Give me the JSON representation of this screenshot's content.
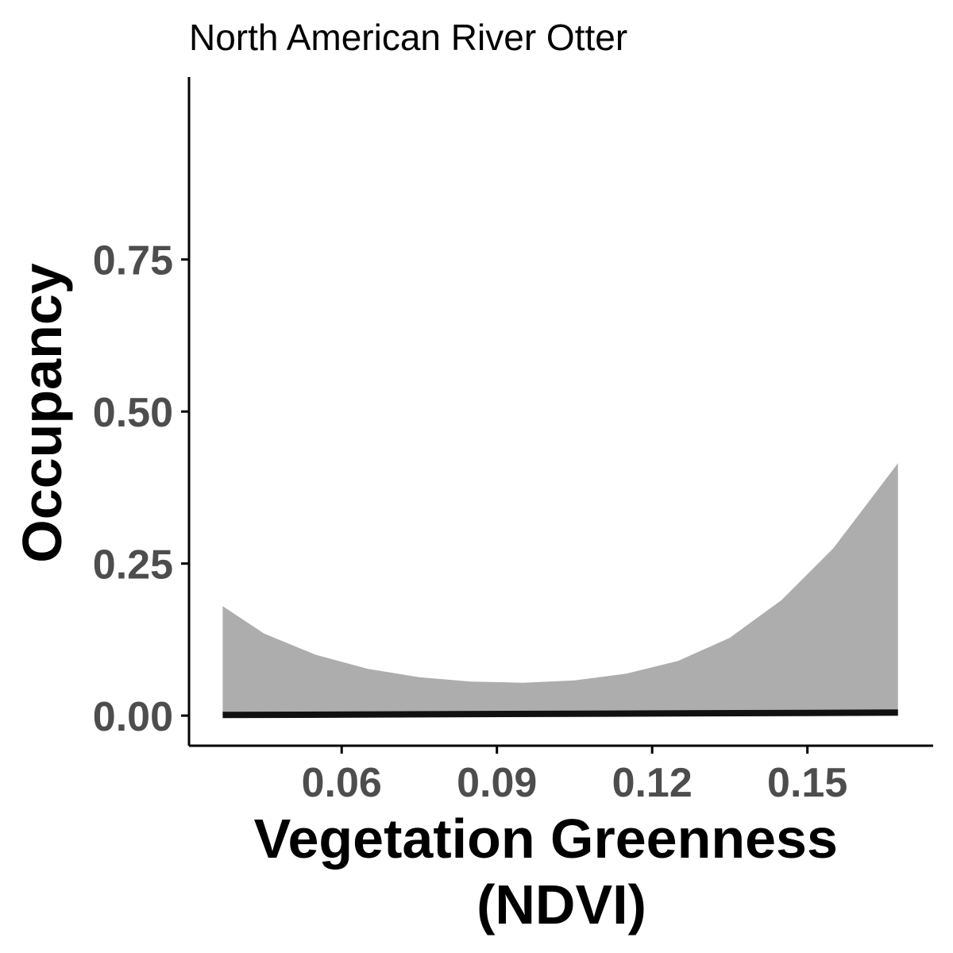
{
  "chart_data": {
    "type": "area",
    "title": "North American River Otter",
    "xlabel_lines": [
      "Vegetation Greenness",
      "(NDVI)"
    ],
    "ylabel": "Occupancy",
    "xlim": [
      0.0305,
      0.1743
    ],
    "ylim": [
      -0.0495,
      1.05
    ],
    "x_ticks": [
      0.06,
      0.09,
      0.12,
      0.15
    ],
    "x_tick_labels": [
      "0.06",
      "0.09",
      "0.12",
      "0.15"
    ],
    "y_ticks": [
      0.0,
      0.25,
      0.5,
      0.75
    ],
    "y_tick_labels": [
      "0.00",
      "0.25",
      "0.50",
      "0.75"
    ],
    "grid": false,
    "legend": "none",
    "ribbon": {
      "color": "#adadad",
      "x": [
        0.037,
        0.045,
        0.055,
        0.065,
        0.075,
        0.085,
        0.095,
        0.105,
        0.115,
        0.125,
        0.135,
        0.145,
        0.155,
        0.1675
      ],
      "upper": [
        0.18,
        0.135,
        0.1,
        0.077,
        0.063,
        0.056,
        0.054,
        0.058,
        0.069,
        0.09,
        0.128,
        0.19,
        0.275,
        0.415
      ],
      "lower": [
        0.0,
        0.0,
        0.0,
        0.0,
        0.0,
        0.0,
        0.0,
        0.0,
        0.0,
        0.0,
        0.0,
        0.0,
        0.0,
        0.0
      ]
    },
    "series": [
      {
        "color": "#111111",
        "x": [
          0.037,
          0.1675
        ],
        "y": [
          0.001,
          0.005
        ]
      }
    ]
  }
}
